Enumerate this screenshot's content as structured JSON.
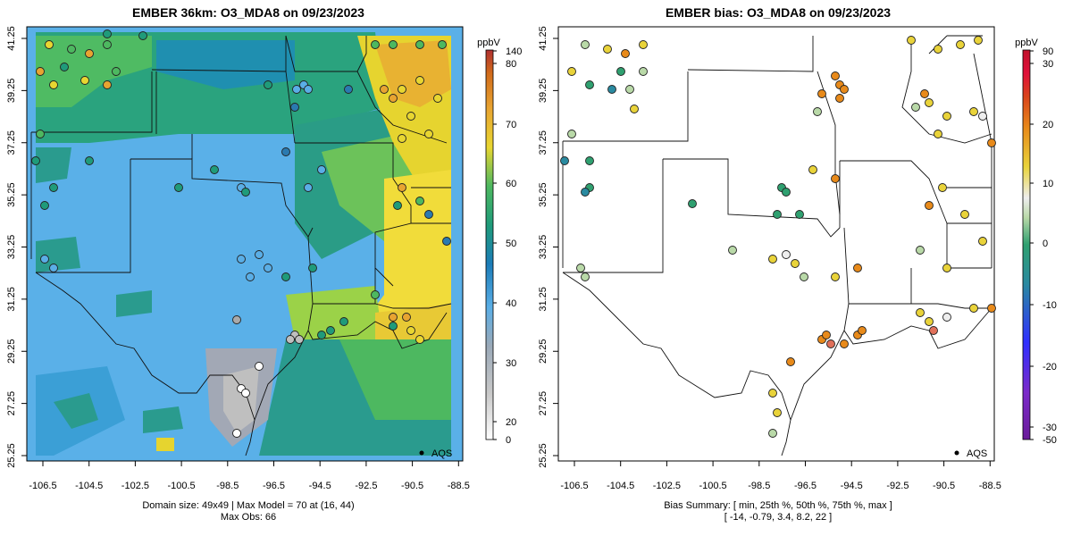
{
  "left_panel": {
    "title": "EMBER 36km: O3_MDA8 on 09/23/2023",
    "legend_unit": "ppbV",
    "legend_ticks": [
      "140",
      "80",
      "70",
      "60",
      "50",
      "40",
      "30",
      "20",
      "0"
    ],
    "footer_line1": "Domain size: 49x49 | Max Model = 70 at (16, 44)",
    "footer_line2": "Max Obs: 66",
    "marker_label": "AQS"
  },
  "right_panel": {
    "title": "EMBER bias: O3_MDA8 on 09/23/2023",
    "legend_unit": "ppbV",
    "legend_ticks": [
      "90",
      "30",
      "20",
      "10",
      "0",
      "-10",
      "-20",
      "-30",
      "-50"
    ],
    "footer_line1": "Bias Summary: [ min, 25th %, 50th %, 75th %, max ]",
    "footer_line2": "[ -14,   -0.79,   3.4,   8.2,   22 ]",
    "marker_label": "AQS"
  },
  "axes": {
    "x_ticks": [
      "-106.5",
      "-104.5",
      "-102.5",
      "-100.5",
      "-98.5",
      "-96.5",
      "-94.5",
      "-92.5",
      "-90.5",
      "-88.5"
    ],
    "y_ticks": [
      "25.25",
      "27.25",
      "29.25",
      "31.25",
      "33.25",
      "35.25",
      "37.25",
      "39.25",
      "41.25"
    ]
  },
  "colors": {
    "concentration_scale": [
      "#ffffff",
      "#aaaaaa",
      "#5aaee6",
      "#1b7cb8",
      "#1f9b7a",
      "#4db860",
      "#e8d631",
      "#e8a431",
      "#d16b1a",
      "#b03030"
    ],
    "bias_scale": [
      "#6a1b9a",
      "#2f2fff",
      "#2a8aa0",
      "#2fa070",
      "#b9d9a8",
      "#eeeeee",
      "#e9d33a",
      "#e88a1a",
      "#d9441a",
      "#e0103a",
      "#c0102a"
    ]
  }
}
